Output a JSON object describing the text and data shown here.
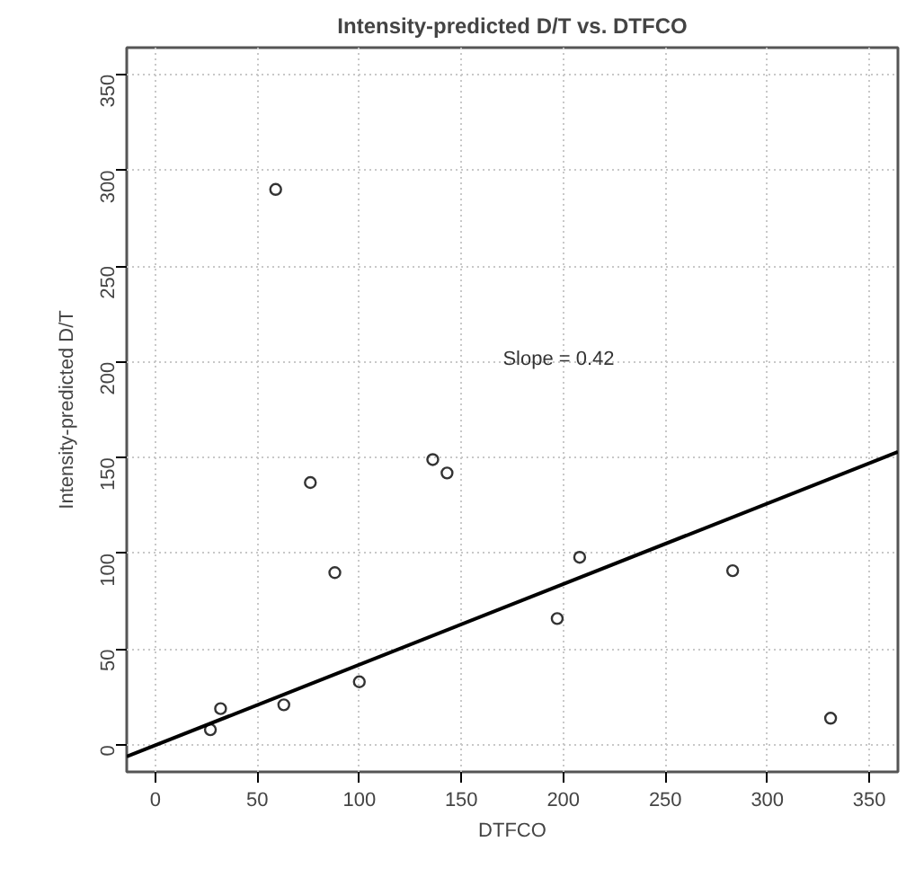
{
  "chart_data": {
    "type": "scatter",
    "title": "Intensity-predicted D/T vs. DTFCO",
    "xlabel": "DTFCO",
    "ylabel": "Intensity-predicted D/T",
    "annotations": [
      "Slope = 0.42"
    ],
    "series": [
      {
        "color": "#333333",
        "marker": "circle",
        "x": [
          27,
          32,
          59,
          63,
          76,
          88,
          100,
          136,
          143,
          197,
          208,
          283,
          331
        ],
        "values": [
          8,
          19,
          290,
          21,
          137,
          90,
          33,
          149,
          142,
          66,
          98,
          91,
          14
        ]
      },
      {
        "type": "line",
        "color": "#000000",
        "line_style": "solid",
        "x": [
          -14,
          364
        ],
        "values": [
          -6,
          153
        ]
      }
    ],
    "xlim": [
      -14,
      364
    ],
    "ylim": [
      -14,
      364
    ],
    "xticks": [
      0,
      50,
      100,
      150,
      200,
      250,
      300,
      350
    ],
    "yticks": [
      0,
      50,
      100,
      150,
      200,
      250,
      300,
      350
    ],
    "grid": true
  }
}
